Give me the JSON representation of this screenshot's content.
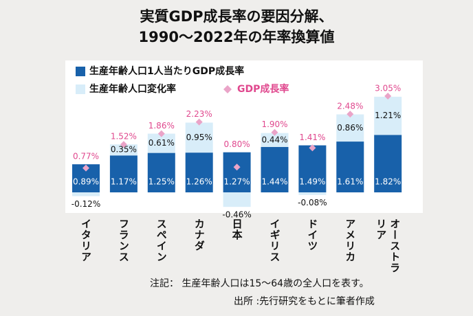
{
  "chart_data": {
    "type": "bar",
    "title": [
      "実質GDP成長率の要因分解、",
      "1990～2022年の年率換算値"
    ],
    "categories": [
      "イタリア",
      "フランス",
      "スペイン",
      "カナダ",
      "日本",
      "イギリス",
      "ドイツ",
      "アメリカ",
      "オーストラリア"
    ],
    "series": [
      {
        "name": "生産年齢人口1人当たりGDP成長率",
        "color": "#1861aa",
        "values": [
          0.89,
          1.17,
          1.25,
          1.26,
          1.27,
          1.44,
          1.49,
          1.61,
          1.82
        ],
        "value_labels": [
          "0.89%",
          "1.17%",
          "1.25%",
          "1.26%",
          "1.27%",
          "1.44%",
          "1.49%",
          "1.61%",
          "1.82%"
        ]
      },
      {
        "name": "生産年齢人口変化率",
        "color": "#d8edf9",
        "values": [
          -0.12,
          0.35,
          0.61,
          0.95,
          -0.46,
          0.44,
          -0.08,
          0.86,
          1.21
        ],
        "value_labels": [
          "-0.12%",
          "0.35%",
          "0.61%",
          "0.95%",
          "-0.46%",
          "0.44%",
          "-0.08%",
          "0.86%",
          "1.21%"
        ]
      },
      {
        "name": "GDP成長率",
        "type": "scatter",
        "color": "#eaa4c8",
        "label_color": "#e0488e",
        "values": [
          0.77,
          1.52,
          1.86,
          2.23,
          0.8,
          1.9,
          1.41,
          2.48,
          3.05
        ],
        "value_labels": [
          "0.77%",
          "1.52%",
          "1.86%",
          "2.23%",
          "0.80%",
          "1.90%",
          "1.41%",
          "2.48%",
          "3.05%"
        ]
      }
    ],
    "ylim": [
      -0.6,
      3.2
    ],
    "notes": [
      "注記： 生産年齢人口は15～64歳の全人口を表す。",
      "出所 :先行研究をもとに筆者作成"
    ]
  }
}
